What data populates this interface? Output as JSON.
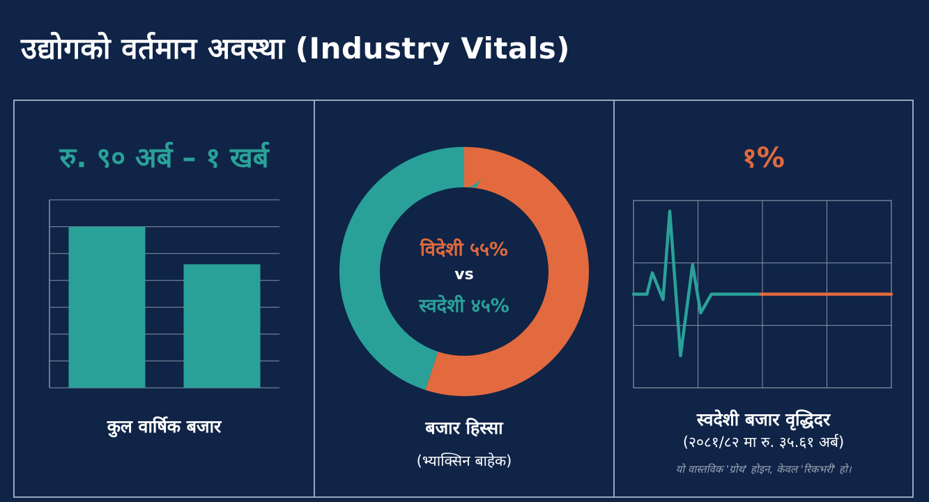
{
  "title": "उद्योगको वर्तमान अवस्था (Industry Vitals)",
  "colors": {
    "background": "#0f2447",
    "teal": "#2aa198",
    "orange": "#e26a3e",
    "grid": "#8a96aa"
  },
  "panels": {
    "market": {
      "headline": "रु. ९० अर्ब – १ खर्ब",
      "label": "कुल वार्षिक बजार"
    },
    "share": {
      "foreign_text": "विदेशी ५५%",
      "vs_text": "vs",
      "domestic_text": "स्वदेशी ४५%",
      "label": "बजार हिस्सा",
      "sublabel": "(भ्याक्सिन बाहेक)"
    },
    "growth": {
      "headline": "१%",
      "label": "स्वदेशी बजार वृद्धिदर",
      "sublabel": "(२०८१/८२ मा रु. ३५.६१ अर्ब)",
      "note": "यो वास्तविक 'ग्रोथ' होइन, केवल 'रिकभरी' हो।"
    }
  },
  "chart_data": [
    {
      "type": "bar",
      "title": "रु. ९० अर्ब – १ खर्ब",
      "xlabel": "कुल वार्षिक बजार",
      "ylabel": "",
      "categories": [
        "",
        ""
      ],
      "values": [
        6,
        4.6
      ],
      "ylim": [
        0,
        7
      ],
      "grid": true,
      "colors": [
        "#2aa198",
        "#2aa198"
      ]
    },
    {
      "type": "pie",
      "title": "बजार हिस्सा",
      "labels": [
        "विदेशी",
        "स्वदेशी"
      ],
      "values": [
        55,
        45
      ],
      "colors": [
        "#e26a3e",
        "#2aa198"
      ],
      "donut": true
    },
    {
      "type": "line",
      "title": "१%",
      "xlabel": "स्वदेशी बजार वृद्धिदर",
      "grid": true,
      "x": [
        0,
        1,
        1.4,
        2.2,
        2.7,
        3.5,
        4.4,
        5,
        5.8,
        6.2,
        6.8,
        9.5,
        19.2
      ],
      "y": [
        0,
        0,
        0.8,
        -0.2,
        3.1,
        -2.3,
        1.1,
        -0.7,
        0,
        0,
        0,
        0,
        0
      ],
      "flat_from_x": 9.5,
      "xlim": [
        0,
        19.2
      ],
      "ylim": [
        -3.5,
        3.5
      ],
      "series_colors": [
        "#2aa198",
        "#e26a3e"
      ]
    }
  ]
}
